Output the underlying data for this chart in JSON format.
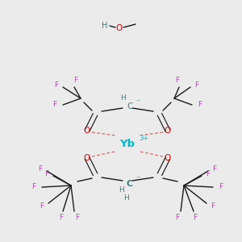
{
  "bg_color": "#ebebeb",
  "colors": {
    "C": "#3d7f7f",
    "H": "#3d7f7f",
    "O": "#dd0000",
    "F": "#ee22ee",
    "Yb": "#00bbcc",
    "bond": "#1a1a1a",
    "dative": "#dd6666"
  }
}
